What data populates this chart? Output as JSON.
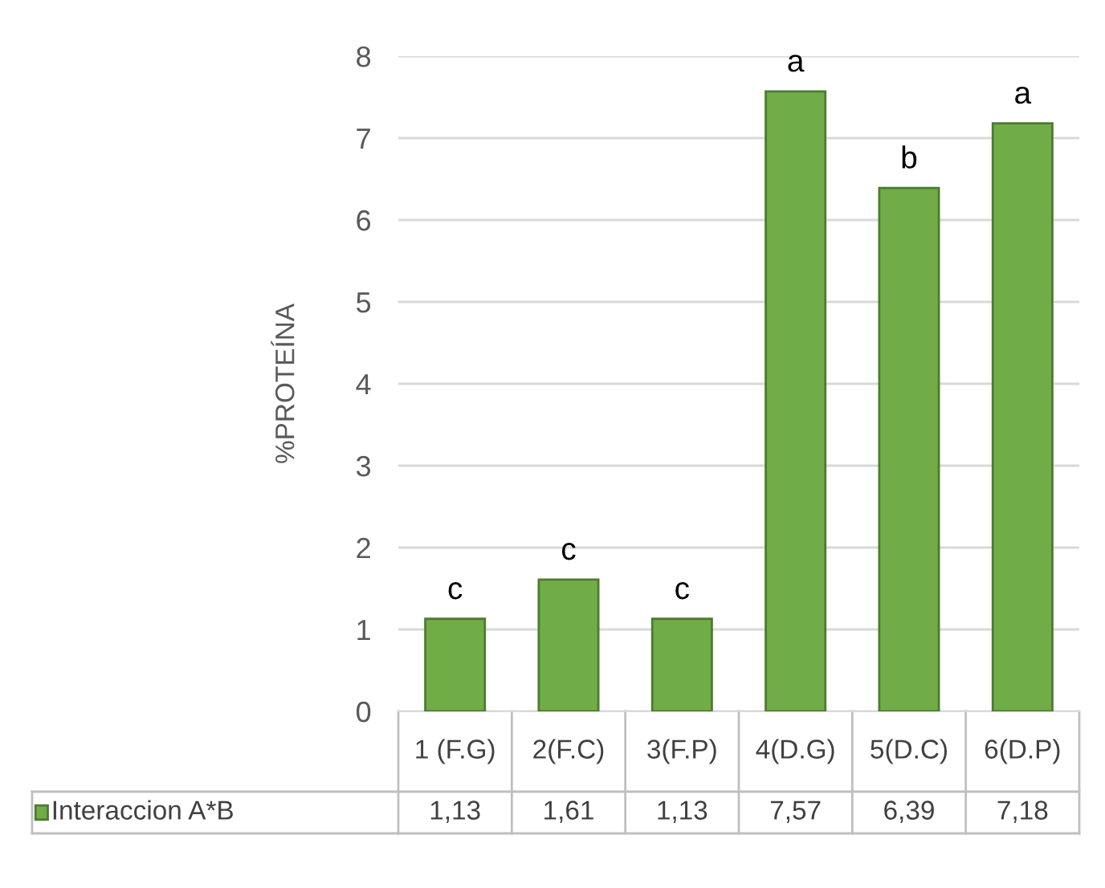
{
  "chart_data": {
    "type": "bar",
    "ylabel": "%PROTEÍNA",
    "categories": [
      "1 (F.G)",
      "2(F.C)",
      "3(F.P)",
      "4(D.G)",
      "5(D.C)",
      "6(D.P)"
    ],
    "series": [
      {
        "name": "Interaccion A*B",
        "color": "#70ad47",
        "values": [
          1.13,
          1.61,
          1.13,
          7.57,
          6.39,
          7.18
        ],
        "value_labels": [
          "1,13",
          "1,61",
          "1,13",
          "7,57",
          "6,39",
          "7,18"
        ]
      }
    ],
    "annotations": [
      {
        "text": "c",
        "x": "1 (F.G)",
        "y": 1.13
      },
      {
        "text": "c",
        "x": "2(F.C)",
        "y": 1.61
      },
      {
        "text": "c",
        "x": "3(F.P)",
        "y": 1.13
      },
      {
        "text": "a",
        "x": "4(D.G)",
        "y": 7.57
      },
      {
        "text": "b",
        "x": "5(D.C)",
        "y": 6.39
      },
      {
        "text": "a",
        "x": "6(D.P)",
        "y": 7.18
      }
    ],
    "ylim": [
      0,
      8
    ],
    "yticks": [
      0,
      1,
      2,
      3,
      4,
      5,
      6,
      7,
      8
    ],
    "grid": "y"
  }
}
